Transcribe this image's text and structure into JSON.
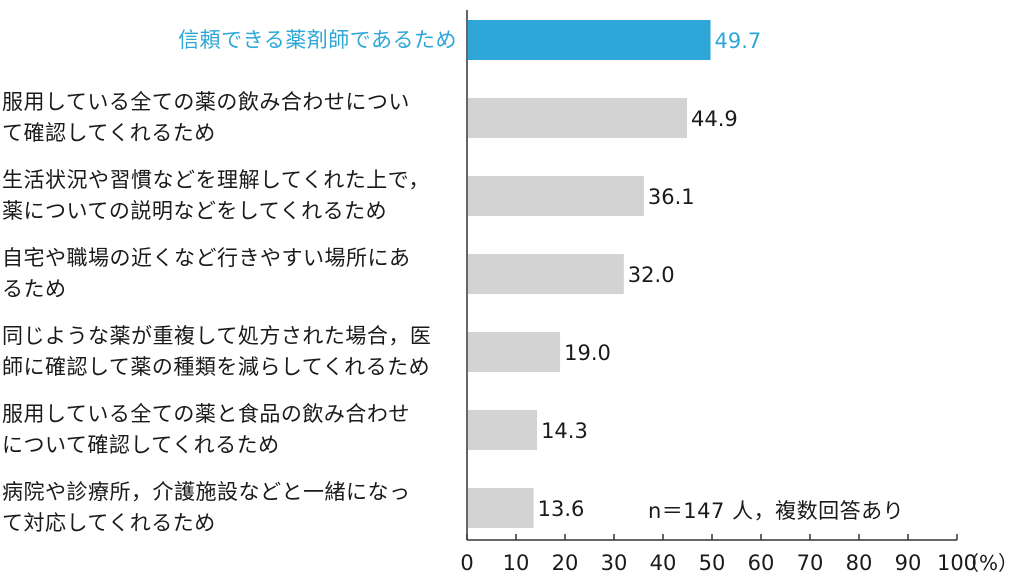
{
  "chart_data": {
    "type": "bar",
    "orientation": "horizontal",
    "categories": [
      "信頼できる薬剤師であるため",
      "服用している全ての薬の飲み合わせについ\nて確認してくれるため",
      "生活状況や習慣などを理解してくれた上で，\n薬についての説明などをしてくれるため",
      "自宅や職場の近くなど行きやすい場所にあ\nるため",
      "同じような薬が重複して処方された場合，医\n師に確認して薬の種類を減らしてくれるため",
      "服用している全ての薬と食品の飲み合わせ\nについて確認してくれるため",
      "病院や診療所，介護施設などと一緒になっ\nて対応してくれるため"
    ],
    "values": [
      49.7,
      44.9,
      36.1,
      32.0,
      19.0,
      14.3,
      13.6
    ],
    "value_labels": [
      "49.7",
      "44.9",
      "36.1",
      "32.0",
      "19.0",
      "14.3",
      "13.6"
    ],
    "highlight_index": 0,
    "xlim": [
      0,
      100
    ],
    "xticks": [
      "0",
      "10",
      "20",
      "30",
      "40",
      "50",
      "60",
      "70",
      "80",
      "90",
      "100"
    ],
    "xunit": "（%）",
    "note": "n＝147 人，複数回答あり",
    "grid": false,
    "colors": {
      "highlight": "#2ea7d8",
      "bar": "#d3d3d3",
      "axis": "#333333",
      "text": "#1a1a1a"
    }
  }
}
